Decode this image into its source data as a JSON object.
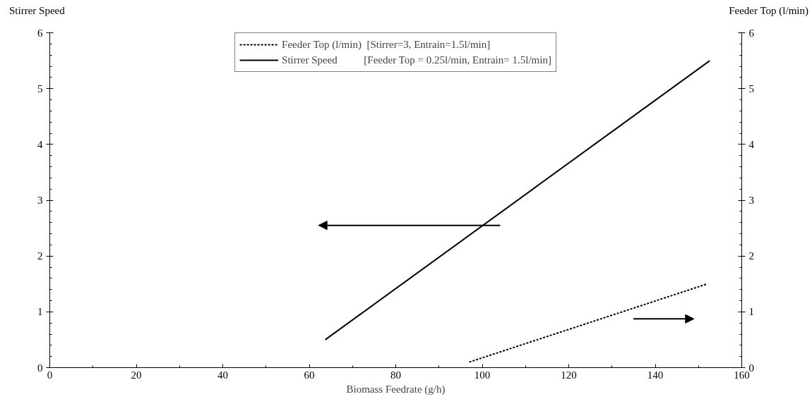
{
  "chart_data": {
    "type": "line",
    "xlabel": "Biomass Feedrate (g/h)",
    "ylabel": "Stirrer Speed",
    "y2label": "Feeder Top (l/min)",
    "xlim": [
      0,
      160
    ],
    "xticks": [
      0,
      20,
      40,
      60,
      80,
      100,
      120,
      140,
      160
    ],
    "ylim": [
      0,
      6
    ],
    "yticks": [
      0,
      1,
      2,
      3,
      4,
      5,
      6
    ],
    "y2lim": [
      0,
      6
    ],
    "y2ticks": [
      0,
      1,
      2,
      3,
      4,
      5,
      6
    ],
    "grid": false,
    "legend": "top",
    "marker": "none",
    "series": [
      {
        "name": "Feeder Top (l/min)  [Stirrer=3, Entrain=1.5l/min]",
        "color": "#000000",
        "x": [
          97,
          152
        ],
        "values": [
          0.1,
          1.5
        ],
        "axis": "y2",
        "line_style": "dotted"
      },
      {
        "name": "Stirrer Speed          [Feeder Top = 0.25l/min, Entrain= 1.5l/min]",
        "color": "#000000",
        "x": [
          63.7,
          152.6
        ],
        "values": [
          0.5,
          5.5
        ],
        "line_style": "solid"
      }
    ]
  }
}
